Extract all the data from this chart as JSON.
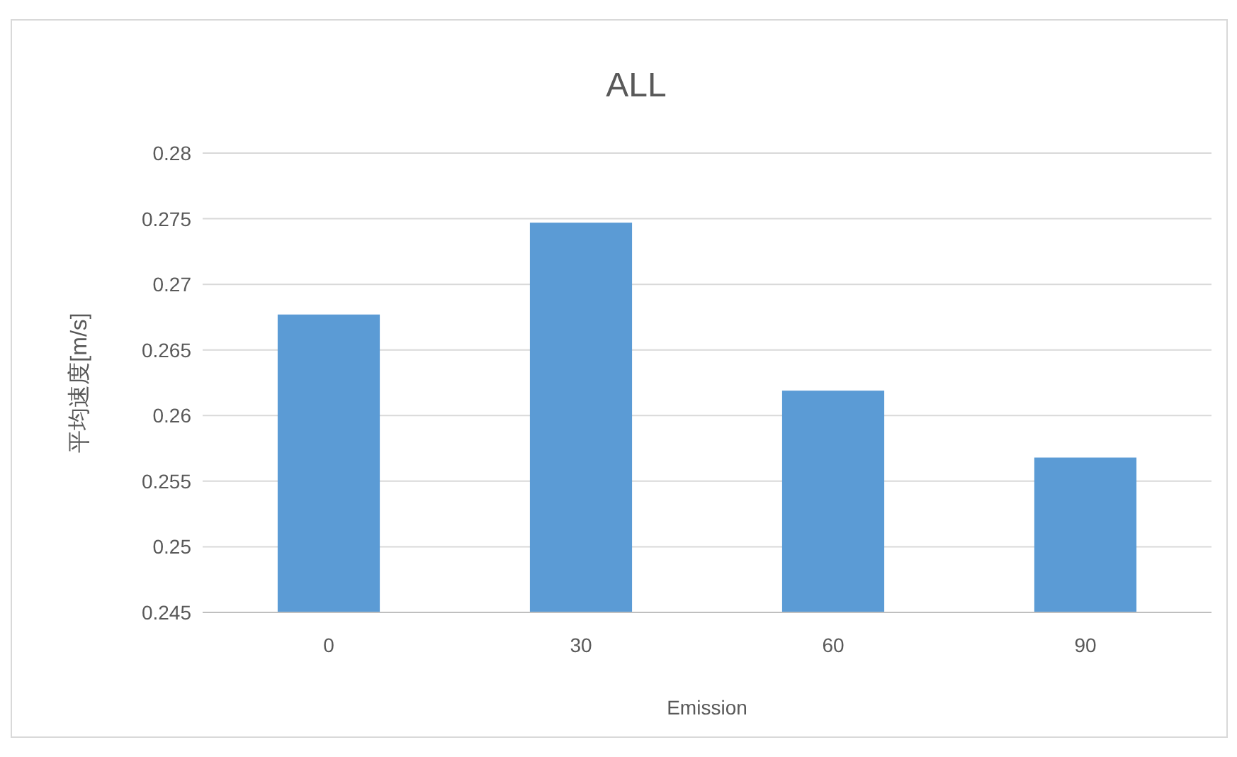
{
  "chart_data": {
    "type": "bar",
    "title": "ALL",
    "xlabel": "Emission",
    "ylabel": "平均速度[m/s]",
    "categories": [
      "0",
      "30",
      "60",
      "90"
    ],
    "values": [
      0.2677,
      0.2747,
      0.2619,
      0.2568
    ],
    "color": "#5b9bd5",
    "ylim": [
      0.245,
      0.28
    ],
    "yticks": [
      0.245,
      0.25,
      0.255,
      0.26,
      0.265,
      0.27,
      0.275,
      0.28
    ],
    "grid": "y"
  }
}
